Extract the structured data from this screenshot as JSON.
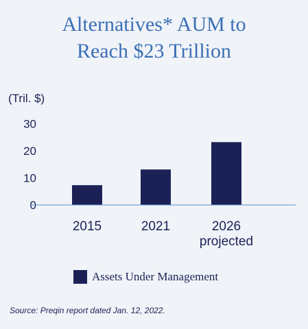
{
  "title_line1": "Alternatives* AUM to",
  "title_line2": "Reach $23 Trillion",
  "source": "Source: Preqin report dated Jan. 12, 2022.",
  "colors": {
    "title": "#3a6fb6",
    "bar": "#1c2155",
    "text": "#1c2155",
    "axis": "#5b8fcf",
    "background": "#f0f3f8"
  },
  "chart_data": {
    "type": "bar",
    "ylabel": "(Tril. $)",
    "categories": [
      [
        "2015"
      ],
      [
        "2021"
      ],
      [
        "2026",
        "projected"
      ]
    ],
    "series": [
      {
        "name": "Assets Under Management",
        "values": [
          7.3,
          13.1,
          23.2
        ]
      }
    ],
    "yticks": [
      0,
      10,
      20,
      30
    ],
    "ylim": [
      0,
      30
    ],
    "grid": false,
    "legend": "bottom"
  }
}
